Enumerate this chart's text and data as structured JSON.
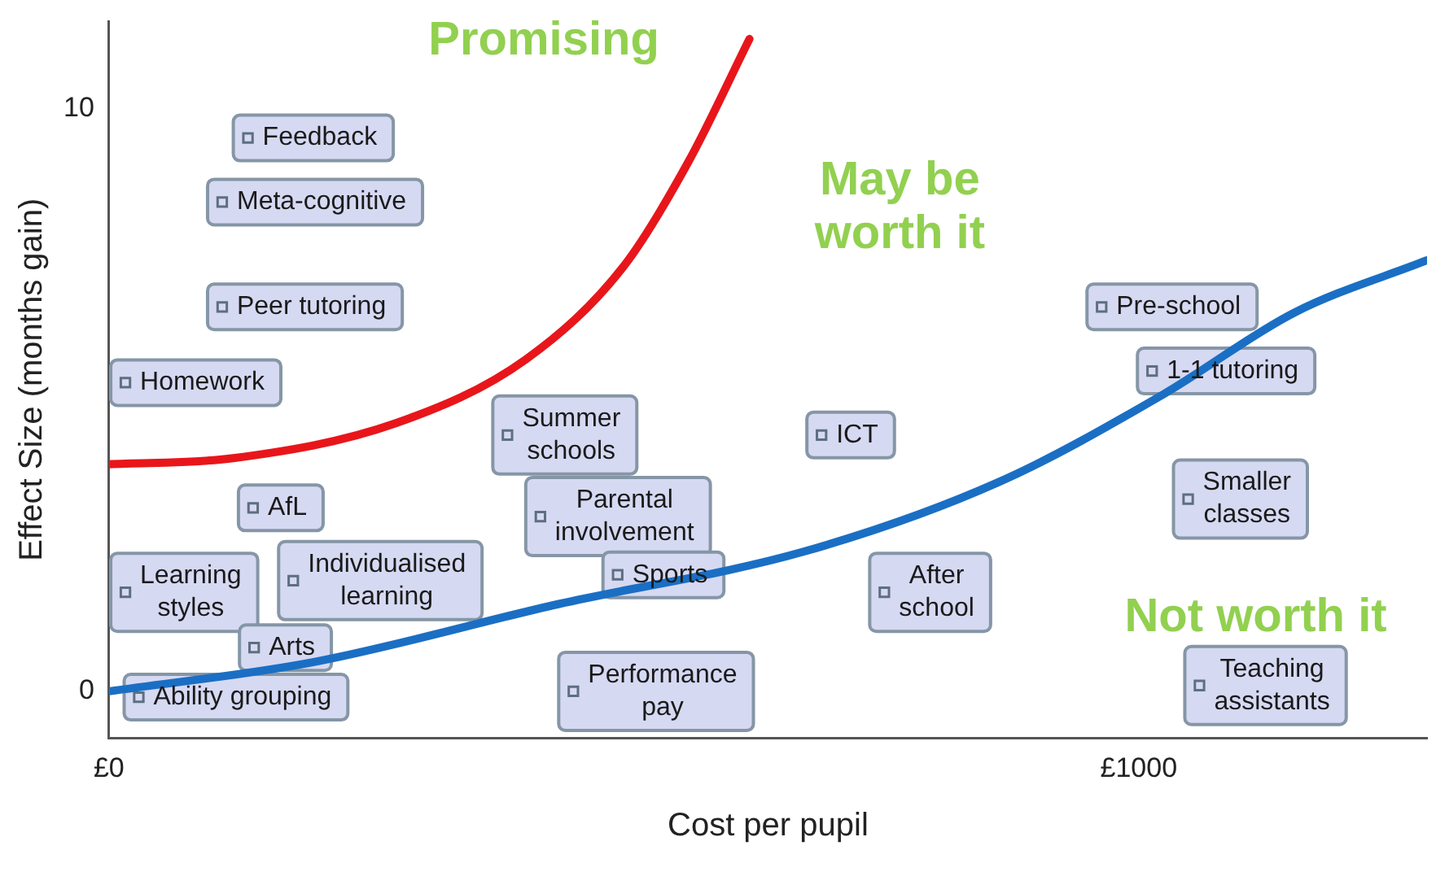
{
  "chart_data": {
    "type": "line",
    "xlabel": "Cost per pupil",
    "ylabel": "Effect Size (months gain)",
    "xlim": [
      0,
      1280
    ],
    "ylim": [
      -0.8,
      11.5
    ],
    "xticks": [
      {
        "value": 0,
        "label": "£0"
      },
      {
        "value": 1000,
        "label": "£1000"
      }
    ],
    "yticks": [
      0,
      10
    ],
    "grid": false,
    "legend": false,
    "line_style": "solid",
    "series": [
      {
        "color": "#e8161b",
        "x": [
          0,
          119,
          278,
          405,
          500,
          563,
          622
        ],
        "values": [
          3.9,
          4.0,
          4.6,
          5.7,
          7.3,
          9.1,
          11.2
        ]
      },
      {
        "color": "#1a6fc4",
        "x": [
          0,
          198,
          437,
          675,
          865,
          1024,
          1151,
          1280
        ],
        "values": [
          0,
          0.5,
          1.5,
          2.4,
          3.6,
          5.1,
          6.5,
          7.4
        ]
      },
      {
        "type": "scatter",
        "color": "#d6d9f2",
        "x": [
          135,
          110,
          110,
          16,
          387,
          692,
          964,
          1013,
          1048,
          140,
          419,
          16,
          179,
          494,
          753,
          141,
          29,
          451,
          1059
        ],
        "values": [
          9.5,
          8.4,
          6.6,
          5.3,
          4.4,
          4.4,
          6.6,
          5.5,
          3.3,
          3.15,
          3.0,
          1.7,
          1.9,
          2.0,
          1.7,
          0.75,
          -0.1,
          0.0,
          0.1
        ],
        "value_labels": [
          "Feedback",
          "Meta-cognitive",
          "Peer tutoring",
          "Homework",
          "Summer\nschools",
          "ICT",
          "Pre-school",
          "1-1 tutoring",
          "Smaller\nclasses",
          "AfL",
          "Parental\ninvolvement",
          "Learning\nstyles",
          "Individualised\nlearning",
          "Sports",
          "After\nschool",
          "Arts",
          "Ability grouping",
          "Performance\npay",
          "Teaching\nassistants"
        ]
      }
    ],
    "annotations": [
      "Promising",
      "May be\nworth it",
      "Not worth it"
    ]
  }
}
